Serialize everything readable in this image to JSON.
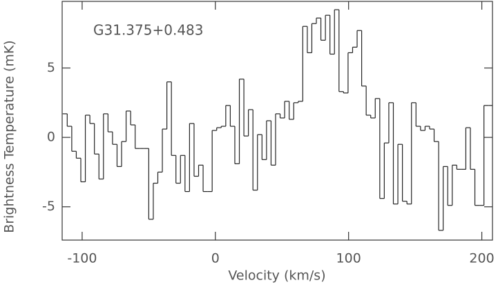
{
  "chart_data": {
    "type": "step",
    "annotation": "G31.375+0.483",
    "xlabel": "Velocity (km/s)",
    "ylabel": "Brightness Temperature (mK)",
    "color": "#222222",
    "xlim": [
      -115,
      208
    ],
    "ylim": [
      -7.4,
      9.8
    ],
    "xticks": [
      -100,
      0,
      100,
      200
    ],
    "yticks": [
      -5,
      0,
      5
    ],
    "x": [
      -112.9,
      -109.5,
      -106.1,
      -102.7,
      -99.3,
      -95.9,
      -92.5,
      -89.1,
      -85.7,
      -82.3,
      -78.9,
      -75.5,
      -72.1,
      -68.7,
      -65.3,
      -61.9,
      -58.5,
      -55.1,
      -51.7,
      -48.3,
      -44.9,
      -41.5,
      -38.1,
      -34.7,
      -31.3,
      -27.9,
      -24.5,
      -21.1,
      -17.7,
      -14.3,
      -10.9,
      -7.5,
      -4.1,
      -0.7,
      2.7,
      6.1,
      9.5,
      12.9,
      16.3,
      19.7,
      23.1,
      26.5,
      29.9,
      33.3,
      36.7,
      40.1,
      43.5,
      46.9,
      50.3,
      53.7,
      57.1,
      60.5,
      63.9,
      67.3,
      70.7,
      74.1,
      77.5,
      80.9,
      84.3,
      87.7,
      91.1,
      94.5,
      97.9,
      101.3,
      104.7,
      108.1,
      111.5,
      114.9,
      118.3,
      121.7,
      125.1,
      128.5,
      131.9,
      135.3,
      138.7,
      142.1,
      145.5,
      148.9,
      152.3,
      155.7,
      159.1,
      162.5,
      165.9,
      169.3,
      172.7,
      176.1,
      179.5,
      182.9,
      186.3,
      189.7,
      193.1,
      196.5,
      199.9,
      203.3,
      206.7
    ],
    "values": [
      1.7,
      0.8,
      -1.0,
      -1.5,
      -3.2,
      1.6,
      1.0,
      -1.2,
      -3.0,
      1.7,
      0.4,
      -0.5,
      -2.1,
      -0.3,
      1.9,
      0.9,
      -0.8,
      -0.8,
      -0.8,
      -5.9,
      -3.3,
      -2.5,
      0.6,
      4.0,
      -1.3,
      -3.3,
      -1.3,
      -3.9,
      1.0,
      -2.8,
      -2.0,
      -3.9,
      -3.9,
      0.5,
      0.7,
      0.8,
      2.3,
      0.8,
      -1.9,
      4.2,
      0.1,
      2.0,
      -3.8,
      0.2,
      -1.6,
      1.2,
      -2.0,
      1.7,
      1.4,
      2.6,
      1.3,
      2.5,
      2.6,
      8.0,
      6.1,
      8.2,
      8.6,
      7.0,
      8.8,
      6.0,
      9.2,
      3.3,
      3.2,
      6.1,
      6.5,
      7.7,
      3.7,
      1.6,
      1.4,
      2.8,
      -4.4,
      -0.4,
      2.5,
      -4.8,
      -0.5,
      -4.6,
      -4.8,
      2.5,
      0.8,
      0.5,
      0.8,
      0.6,
      -0.3,
      -6.7,
      -2.1,
      -4.9,
      -2.0,
      -2.3,
      -2.3,
      0.7,
      -2.3,
      -4.9,
      -4.9,
      2.3,
      2.3
    ]
  }
}
